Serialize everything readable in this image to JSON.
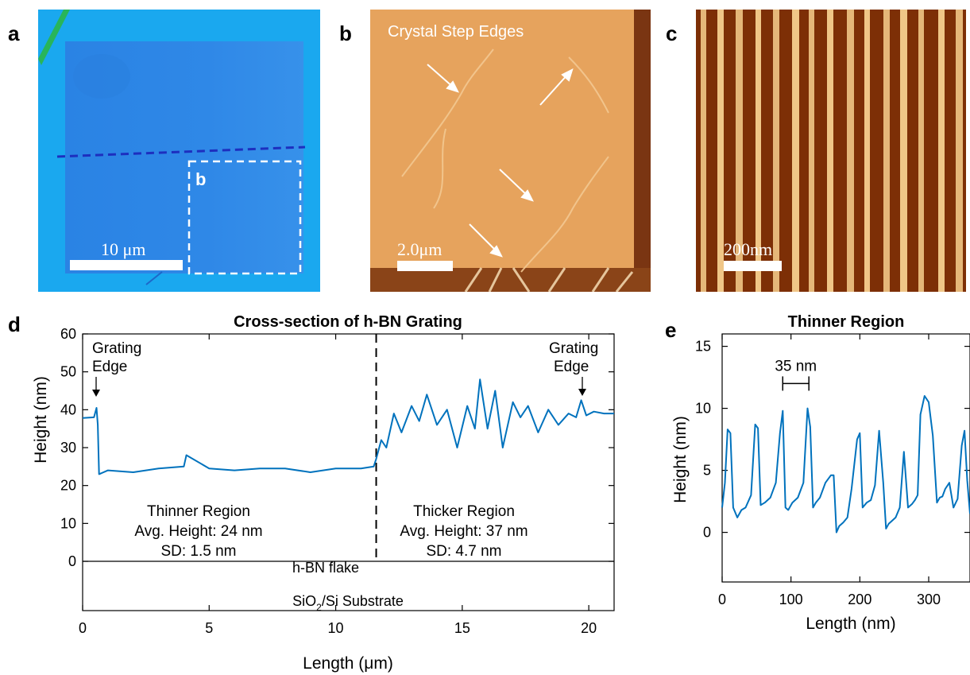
{
  "panels": {
    "a": {
      "letter": "a",
      "scale_label": "10 μm",
      "inset_label": "b",
      "colors": {
        "substrate": "#1aa8ef",
        "flake": "#2f86e6",
        "cut_line": "#1d2fbf",
        "box": "#ffffff"
      }
    },
    "b": {
      "letter": "b",
      "title": "Crystal Step Edges",
      "scale_label": "2.0μm",
      "colors": {
        "surface": "#e5a25c",
        "dark": "#7a3512"
      }
    },
    "c": {
      "letter": "c",
      "scale_label": "200nm",
      "colors": {
        "dark": "#7d2f06",
        "light": "#f7cf8e"
      }
    },
    "d": {
      "letter": "d"
    },
    "e": {
      "letter": "e"
    }
  },
  "chart_data": [
    {
      "id": "d",
      "type": "line",
      "title": "Cross-section of h-BN Grating",
      "xlabel": "Length (μm)",
      "ylabel": "Height (nm)",
      "xlim": [
        0,
        21
      ],
      "ylim": [
        -13,
        60
      ],
      "xticks": [
        0,
        5,
        10,
        15,
        20
      ],
      "yticks": [
        0,
        10,
        20,
        30,
        40,
        50,
        60
      ],
      "line_color": "#0072bd",
      "series": [
        {
          "x": [
            0,
            0.45,
            0.55,
            0.6,
            0.65,
            1,
            2,
            3,
            4,
            4.1,
            5,
            6,
            7,
            8,
            9,
            10,
            11,
            11.5,
            11.6,
            11.8,
            12,
            12.3,
            12.6,
            13,
            13.3,
            13.6,
            14,
            14.4,
            14.8,
            15.2,
            15.5,
            15.7,
            16,
            16.3,
            16.6,
            17,
            17.3,
            17.6,
            18,
            18.4,
            18.8,
            19.2,
            19.5,
            19.7,
            19.9,
            20.2,
            20.6,
            21
          ],
          "values": [
            37.8,
            38,
            40.5,
            36,
            23,
            24,
            23.5,
            24.5,
            25,
            28,
            24.5,
            24,
            24.5,
            24.5,
            23.5,
            24.5,
            24.5,
            25,
            27,
            32,
            30,
            39,
            34,
            41,
            37,
            44,
            36,
            40,
            30,
            41,
            35,
            48,
            35,
            45,
            30,
            42,
            38,
            41,
            34,
            40,
            36,
            39,
            38,
            42.5,
            38.5,
            39.5,
            39,
            39
          ]
        }
      ],
      "annotations": {
        "grating_edge_left": [
          "Grating",
          "Edge"
        ],
        "grating_edge_right": [
          "Grating",
          "Edge"
        ],
        "thinner": [
          "Thinner Region",
          "Avg. Height: 24 nm",
          "SD: 1.5 nm"
        ],
        "thicker": [
          "Thicker Region",
          "Avg. Height: 37 nm",
          "SD: 4.7 nm"
        ],
        "flake": "h-BN flake",
        "substrate_main": "SiO",
        "substrate_sub": "2",
        "substrate_tail": "/Si Substrate",
        "flake_boundary_x": 11.6
      }
    },
    {
      "id": "e",
      "type": "line",
      "title": "Thinner Region",
      "xlabel": "Length (nm)",
      "ylabel": "Height (nm)",
      "xlim": [
        0,
        360
      ],
      "ylim": [
        -4,
        16
      ],
      "xticks": [
        0,
        100,
        200,
        300
      ],
      "yticks": [
        0,
        5,
        10,
        15
      ],
      "line_color": "#0072bd",
      "series": [
        {
          "x": [
            0,
            4,
            8,
            12,
            16,
            22,
            28,
            34,
            42,
            48,
            52,
            56,
            62,
            70,
            78,
            84,
            88,
            92,
            96,
            102,
            110,
            118,
            124,
            128,
            132,
            136,
            142,
            150,
            158,
            162,
            166,
            170,
            176,
            182,
            188,
            196,
            200,
            204,
            210,
            216,
            222,
            228,
            234,
            238,
            242,
            246,
            252,
            258,
            264,
            270,
            276,
            280,
            284,
            288,
            294,
            300,
            306,
            312,
            316,
            320,
            324,
            330,
            336,
            342,
            348,
            352,
            356,
            360
          ],
          "values": [
            2,
            4,
            8.3,
            8,
            2,
            1.2,
            1.8,
            2,
            3,
            8.7,
            8.4,
            2.2,
            2.4,
            2.8,
            4,
            8,
            9.8,
            2,
            1.8,
            2.4,
            2.8,
            4,
            10,
            8.5,
            2,
            2.4,
            2.8,
            4,
            4.6,
            4.6,
            0,
            0.5,
            0.8,
            1.2,
            3.5,
            7.5,
            8,
            2,
            2.4,
            2.6,
            3.8,
            8.2,
            4,
            0.3,
            0.7,
            0.9,
            1.2,
            2,
            6.5,
            2,
            2.3,
            2.6,
            3,
            9.5,
            11,
            10.5,
            7.8,
            2.4,
            2.8,
            2.9,
            3.5,
            4,
            2,
            2.7,
            7,
            8.2,
            4.2,
            1.5
          ]
        }
      ],
      "annotations": {
        "spacing_label": "35 nm",
        "spacing_from": 88,
        "spacing_to": 126,
        "spacing_y": 12
      }
    }
  ]
}
